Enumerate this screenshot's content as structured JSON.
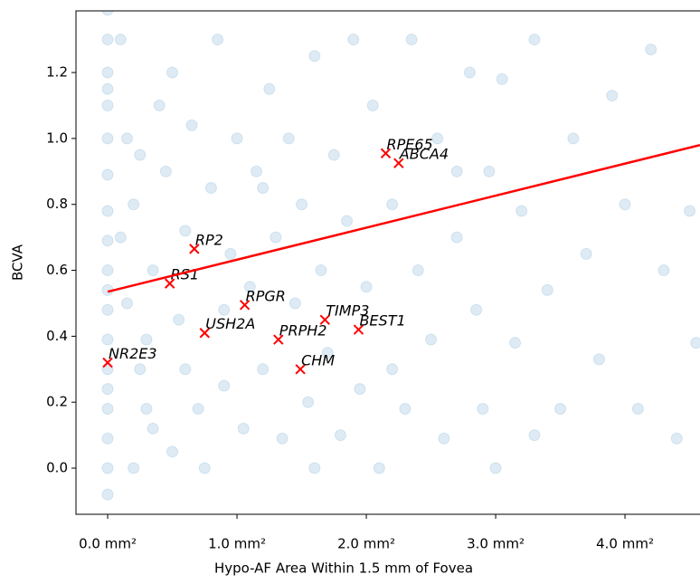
{
  "chart_data": {
    "type": "scatter",
    "xlabel": "Hypo-AF Area Within 1.5 mm of Fovea",
    "ylabel": "BCVA",
    "xlim": [
      -0.245,
      4.58
    ],
    "ylim": [
      -0.14,
      1.387
    ],
    "xticks": [
      {
        "value": 0,
        "label": "0.0 mm²"
      },
      {
        "value": 1,
        "label": "1.0 mm²"
      },
      {
        "value": 2,
        "label": "2.0 mm²"
      },
      {
        "value": 3,
        "label": "3.0 mm²"
      },
      {
        "value": 4,
        "label": "4.0 mm²"
      }
    ],
    "yticks": [
      {
        "value": 0,
        "label": "0.0"
      },
      {
        "value": 0.2,
        "label": "0.2"
      },
      {
        "value": 0.4,
        "label": "0.4"
      },
      {
        "value": 0.6,
        "label": "0.6"
      },
      {
        "value": 0.8,
        "label": "0.8"
      },
      {
        "value": 1,
        "label": "1.0"
      },
      {
        "value": 1.2,
        "label": "1.2"
      }
    ],
    "series": [
      {
        "color": "#1f77b4",
        "x": [
          0,
          0,
          0,
          0,
          0,
          0,
          0,
          0,
          0,
          0,
          0,
          0,
          0,
          0,
          0,
          0,
          0,
          0,
          0,
          0.1,
          0.15,
          0.2,
          0.25,
          0.3,
          0.35,
          0.4,
          0.45,
          0.5,
          0.55,
          0.6,
          0.65,
          0.7,
          0.75,
          0.8,
          0.85,
          0.9,
          0.95,
          1.0,
          1.05,
          1.1,
          1.15,
          1.2,
          1.25,
          1.3,
          1.35,
          1.4,
          1.45,
          1.5,
          1.55,
          1.6,
          1.65,
          1.7,
          1.75,
          1.8,
          1.85,
          1.9,
          1.95,
          2.0,
          2.05,
          2.1,
          2.2,
          2.3,
          2.35,
          2.4,
          2.5,
          2.55,
          2.6,
          2.7,
          2.8,
          2.85,
          2.9,
          2.95,
          3.0,
          3.05,
          3.15,
          3.2,
          3.3,
          3.4,
          3.5,
          3.6,
          3.7,
          3.8,
          3.9,
          4.0,
          4.1,
          4.2,
          4.3,
          4.4,
          4.5,
          4.55,
          0.2,
          0.3,
          0.5,
          0.6,
          0.9,
          1.2,
          1.6,
          2.2,
          2.7,
          3.3,
          0.1,
          0.15,
          0.25,
          0.35
        ],
        "y": [
          -0.08,
          0,
          0.09,
          0.18,
          0.24,
          0.3,
          0.39,
          0.48,
          0.54,
          0.6,
          0.69,
          0.78,
          0.89,
          1.0,
          1.1,
          1.15,
          1.2,
          1.3,
          1.39,
          1.3,
          1.0,
          0.8,
          0.3,
          0.18,
          0.6,
          1.1,
          0.9,
          0.05,
          0.45,
          0.72,
          1.04,
          0.18,
          0.0,
          0.85,
          1.3,
          0.25,
          0.65,
          1.0,
          0.12,
          0.55,
          0.9,
          0.3,
          1.15,
          0.7,
          0.09,
          1.0,
          0.5,
          0.8,
          0.2,
          1.25,
          0.6,
          0.35,
          0.95,
          0.1,
          0.75,
          1.3,
          0.24,
          0.55,
          1.1,
          0.0,
          0.8,
          0.18,
          1.3,
          0.6,
          0.39,
          1.0,
          0.09,
          0.7,
          1.2,
          0.48,
          0.18,
          0.9,
          0.0,
          1.18,
          0.38,
          0.78,
          1.3,
          0.54,
          0.18,
          1.0,
          0.65,
          0.33,
          1.13,
          0.8,
          0.18,
          1.27,
          0.6,
          0.09,
          0.78,
          0.38,
          0.0,
          0.39,
          1.2,
          0.3,
          0.48,
          0.85,
          0.0,
          0.3,
          0.9,
          0.1,
          0.7,
          0.5,
          0.95,
          0.12
        ]
      },
      {
        "color": "red",
        "marker": "x",
        "labels": [
          "RPE65",
          "ABCA4",
          "RP2",
          "RS1",
          "RPGR",
          "TIMP3",
          "BEST1",
          "USH2A",
          "PRPH2",
          "CHM",
          "NR2E3"
        ],
        "x": [
          2.15,
          2.25,
          0.67,
          0.48,
          1.06,
          1.68,
          1.94,
          0.75,
          1.32,
          1.49,
          0.0
        ],
        "y": [
          0.955,
          0.925,
          0.665,
          0.56,
          0.495,
          0.45,
          0.42,
          0.41,
          0.39,
          0.3,
          0.32
        ]
      }
    ],
    "fit_line": {
      "color": "red",
      "x": [
        0,
        4.58
      ],
      "y": [
        0.535,
        0.98
      ]
    }
  }
}
